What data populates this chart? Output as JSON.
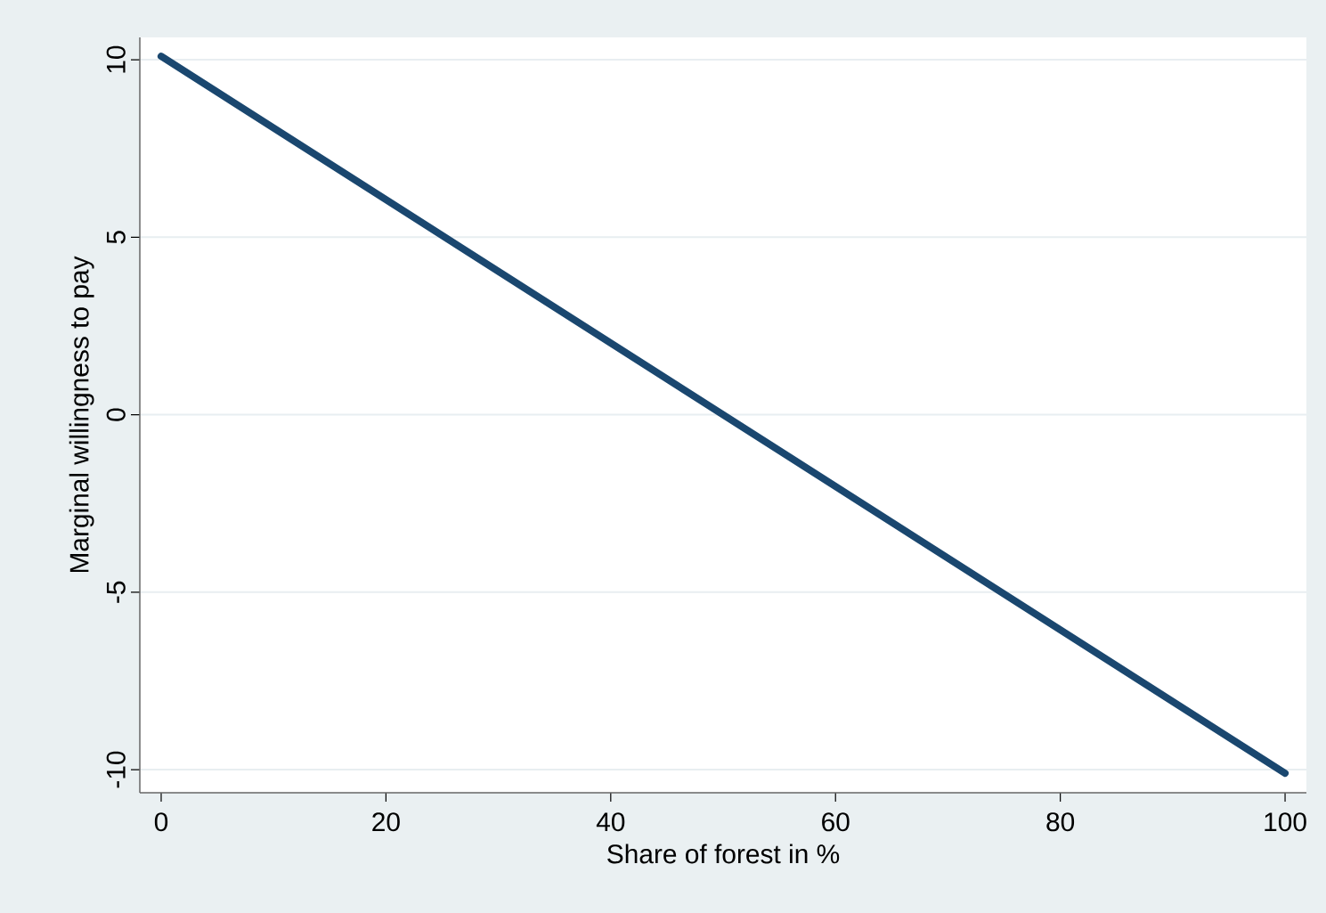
{
  "chart_data": {
    "type": "line",
    "xlabel": "Share of forest in %",
    "ylabel": "Marginal willingness to pay",
    "x": [
      0,
      100
    ],
    "series": [
      {
        "color": "#1a476f",
        "values": [
          10.1,
          -10.1
        ]
      }
    ],
    "xlim": [
      -1.9,
      101.9
    ],
    "ylim": [
      -10.65,
      10.63
    ],
    "xticks": [
      0,
      20,
      40,
      60,
      80,
      100
    ],
    "yticks": [
      -10,
      -5,
      0,
      5,
      10
    ],
    "grid": "y",
    "marker": "none",
    "line_style": "solid"
  }
}
